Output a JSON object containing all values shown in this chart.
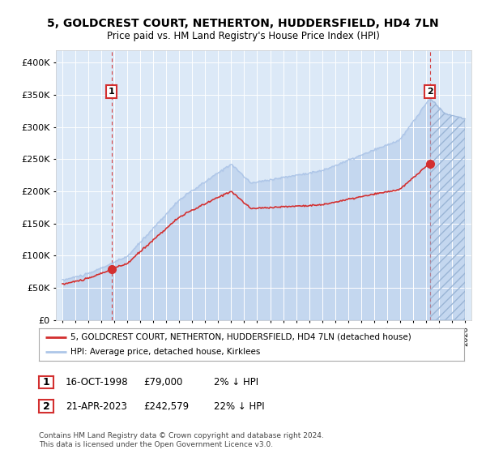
{
  "title": "5, GOLDCREST COURT, NETHERTON, HUDDERSFIELD, HD4 7LN",
  "subtitle": "Price paid vs. HM Land Registry's House Price Index (HPI)",
  "sale1_date": "16-OCT-1998",
  "sale1_price": 79000,
  "sale1_hpi_diff": "2% ↓ HPI",
  "sale1_x": 1998.79,
  "sale2_date": "21-APR-2023",
  "sale2_price": 242579,
  "sale2_hpi_diff": "22% ↓ HPI",
  "sale2_x": 2023.3,
  "legend_line1": "5, GOLDCREST COURT, NETHERTON, HUDDERSFIELD, HD4 7LN (detached house)",
  "legend_line2": "HPI: Average price, detached house, Kirklees",
  "footer": "Contains HM Land Registry data © Crown copyright and database right 2024.\nThis data is licensed under the Open Government Licence v3.0.",
  "ylim": [
    0,
    420000
  ],
  "yticks": [
    0,
    50000,
    100000,
    150000,
    200000,
    250000,
    300000,
    350000,
    400000
  ],
  "xlim": [
    1994.5,
    2026.5
  ],
  "hpi_color": "#aec6e8",
  "price_color": "#d32f2f",
  "bg_color": "#dce9f7"
}
